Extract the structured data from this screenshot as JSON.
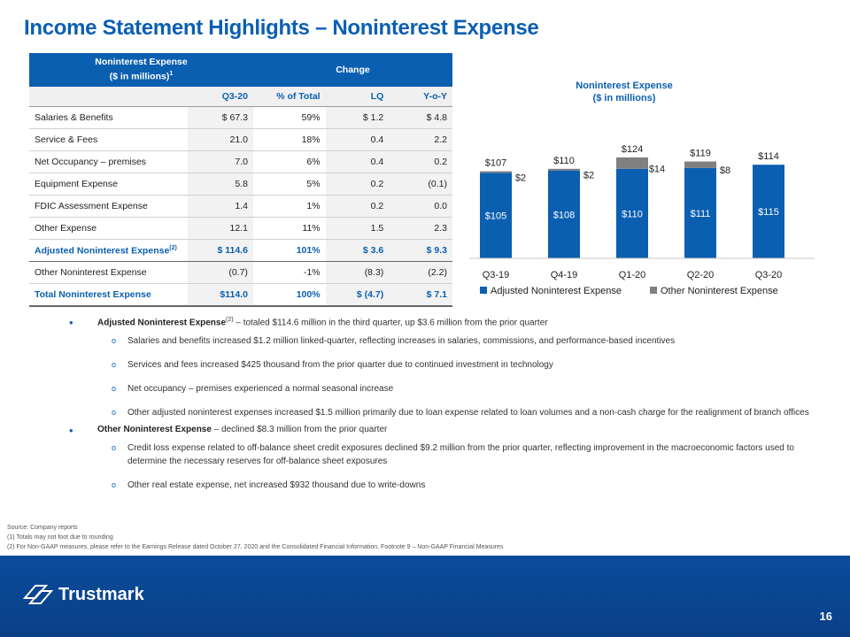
{
  "title": "Income Statement Highlights – Noninterest Expense",
  "table": {
    "header_left_line1": "Noninterest Expense",
    "header_left_line2": "($ in millions)",
    "header_left_sup": "1",
    "header_change": "Change",
    "columns": [
      "Q3-20",
      "% of Total",
      "LQ",
      "Y-o-Y"
    ],
    "rows": [
      {
        "label": "Salaries & Benefits",
        "q3": "$ 67.3",
        "pct": "59%",
        "lq": "$ 1.2",
        "yoy": "$ 4.8"
      },
      {
        "label": "Service & Fees",
        "q3": "21.0",
        "pct": "18%",
        "lq": "0.4",
        "yoy": "2.2"
      },
      {
        "label": "Net Occupancy – premises",
        "q3": "7.0",
        "pct": "6%",
        "lq": "0.4",
        "yoy": "0.2"
      },
      {
        "label": "Equipment Expense",
        "q3": "5.8",
        "pct": "5%",
        "lq": "0.2",
        "yoy": "(0.1)"
      },
      {
        "label": "FDIC Assessment Expense",
        "q3": "1.4",
        "pct": "1%",
        "lq": "0.2",
        "yoy": "0.0"
      },
      {
        "label": "Other Expense",
        "q3": "12.1",
        "pct": "11%",
        "lq": "1.5",
        "yoy": "2.3"
      }
    ],
    "adjusted": {
      "label": "Adjusted Noninterest Expense",
      "sup": "(2)",
      "q3": "$ 114.6",
      "pct": "101%",
      "lq": "$ 3.6",
      "yoy": "$ 9.3"
    },
    "other": {
      "label": "Other Noninterest Expense",
      "q3": "(0.7)",
      "pct": "-1%",
      "lq": "(8.3)",
      "yoy": "(2.2)"
    },
    "total": {
      "label": "Total Noninterest Expense",
      "q3": "$114.0",
      "pct": "100%",
      "lq": "$ (4.7)",
      "yoy": "$ 7.1"
    }
  },
  "chart_title_line1": "Noninterest Expense",
  "chart_title_line2": "($ in millions)",
  "chart_data": {
    "type": "bar",
    "stacked": true,
    "title": "Noninterest Expense ($ in millions)",
    "categories": [
      "Q3-19",
      "Q4-19",
      "Q1-20",
      "Q2-20",
      "Q3-20"
    ],
    "series": [
      {
        "name": "Adjusted Noninterest Expense",
        "values": [
          105,
          108,
          110,
          111,
          115
        ],
        "labels": [
          "$105",
          "$108",
          "$110",
          "$111",
          "$115"
        ],
        "color": "#0b5fb0"
      },
      {
        "name": "Other Noninterest Expense",
        "values": [
          2,
          2,
          14,
          8,
          -1
        ],
        "labels": [
          "$2",
          "$2",
          "$14",
          "$8",
          ""
        ],
        "color": "#808080"
      }
    ],
    "totals": [
      "$107",
      "$110",
      "$124",
      "$119",
      "$114"
    ],
    "legend": "bottom"
  },
  "bullets": [
    {
      "bold": "Adjusted Noninterest Expense",
      "sup": "(2)",
      "text": " – totaled $114.6 million in the third quarter, up $3.6 million from the prior quarter",
      "subs": [
        "Salaries and benefits increased $1.2 million linked-quarter, reflecting increases in salaries, commissions, and performance-based incentives",
        "Services and fees increased $425 thousand from the prior quarter due to continued investment in technology",
        "Net occupancy – premises experienced a normal seasonal increase",
        "Other adjusted noninterest expenses increased $1.5 million primarily due to loan expense related to loan volumes and a non-cash charge for the realignment of branch offices"
      ]
    },
    {
      "bold": "Other Noninterest Expense",
      "sup": "",
      "text": " – declined $8.3 million from the prior quarter",
      "subs": [
        "Credit loss expense related to off-balance sheet credit exposures declined $9.2 million from the prior quarter, reflecting improvement in the macroeconomic factors used to determine the necessary reserves for off-balance sheet exposures",
        "Other real estate expense, net increased $932 thousand due to write-downs"
      ]
    }
  ],
  "footnotes": [
    "Source: Company reports",
    "(1) Totals may not foot due to rounding",
    "(2) For Non-GAAP measures, please refer to the Earnings Release dated October 27, 2020 and the Consolidated Financial Information, Footnote 9 – Non-GAAP Financial Measures"
  ],
  "footer": {
    "logo_text": "Trustmark",
    "page_number": "16"
  },
  "colors": {
    "brand_blue": "#0b5fb0",
    "gray": "#808080"
  }
}
